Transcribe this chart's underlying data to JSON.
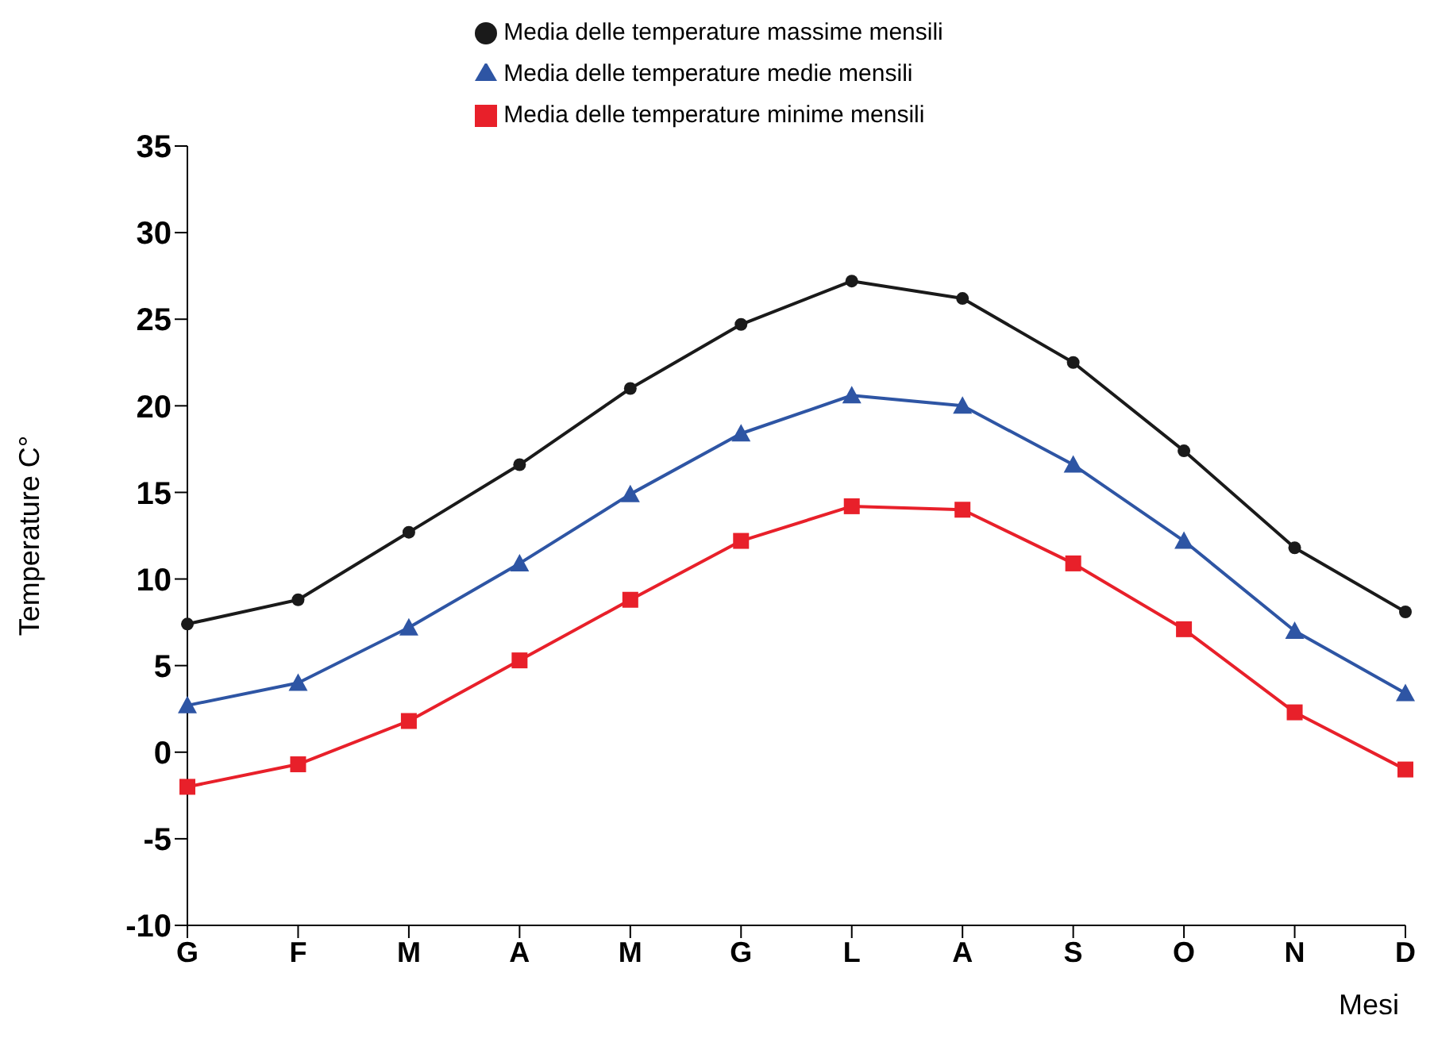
{
  "chart_data": {
    "type": "line",
    "ylabel": "Temperature C°",
    "xlabel": "Mesi",
    "categories": [
      "G",
      "F",
      "M",
      "A",
      "M",
      "G",
      "L",
      "A",
      "S",
      "O",
      "N",
      "D"
    ],
    "series": [
      {
        "name": "Media delle temperature massime mensili",
        "color": "#1a1a1a",
        "marker": "circle",
        "values": [
          7.4,
          8.8,
          12.7,
          16.6,
          21.0,
          24.7,
          27.2,
          26.2,
          22.5,
          17.4,
          11.8,
          8.1
        ]
      },
      {
        "name": "Media delle temperature minime mensili",
        "color": "#e8202a",
        "marker": "square",
        "values": [
          -2.0,
          -0.7,
          1.8,
          5.3,
          8.8,
          12.2,
          14.2,
          14.0,
          10.9,
          7.1,
          2.3,
          -1.0
        ]
      },
      {
        "name": "Media delle temperature medie mensili",
        "color": "#2e55a4",
        "marker": "triangle",
        "values": [
          2.7,
          4.0,
          7.2,
          10.9,
          14.9,
          18.4,
          20.6,
          20.0,
          16.6,
          12.2,
          7.0,
          3.4
        ]
      }
    ],
    "ylim": [
      -10,
      35
    ],
    "yticks": [
      -10,
      -5,
      0,
      5,
      10,
      15,
      20,
      25,
      30,
      35
    ],
    "grid": false,
    "legend": "top",
    "line_style": "solid"
  }
}
